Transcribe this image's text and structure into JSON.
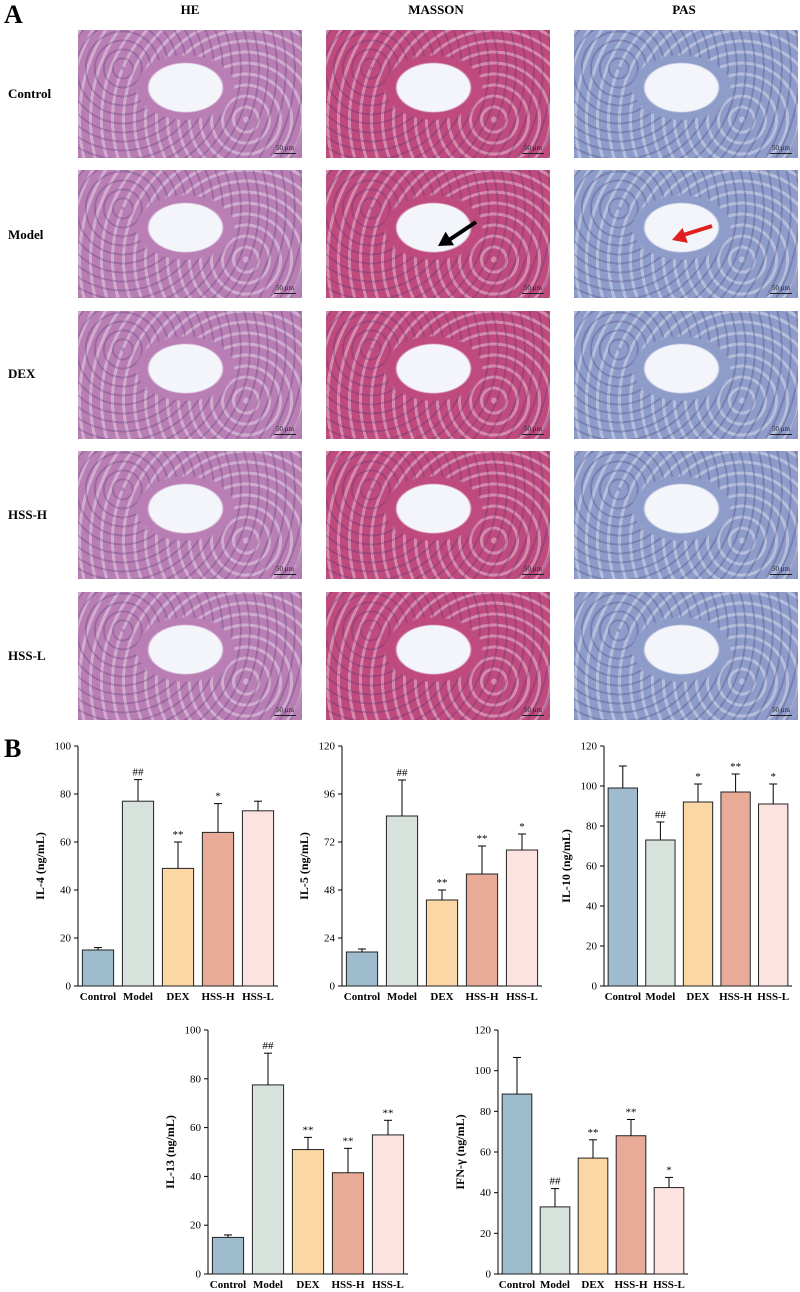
{
  "panels": {
    "a": "A",
    "b": "B"
  },
  "histology": {
    "columns": [
      "HE",
      "MASSON",
      "PAS"
    ],
    "rows": [
      "Control",
      "Model",
      "DEX",
      "HSS-H",
      "HSS-L"
    ],
    "scale_bar": "50 μm",
    "colors": {
      "HE": "#b97fb4",
      "MASSON": "#bf4a7e",
      "PAS": "#8d9cc8"
    },
    "arrows": [
      {
        "row": "Model",
        "column": "MASSON",
        "color": "#000000"
      },
      {
        "row": "Model",
        "column": "PAS",
        "color": "#e02020"
      }
    ]
  },
  "chart_data": [
    {
      "type": "bar",
      "ylabel": "IL-4 (ng/mL)",
      "categories": [
        "Control",
        "Model",
        "DEX",
        "HSS-H",
        "HSS-L"
      ],
      "values": [
        15,
        77,
        49,
        64,
        73
      ],
      "errors": [
        1,
        9,
        11,
        12,
        4
      ],
      "annotations": [
        "",
        "##",
        "**",
        "*",
        ""
      ],
      "ylim": [
        0,
        100
      ],
      "yticks": [
        0,
        20,
        40,
        60,
        80,
        100
      ],
      "colors": [
        "#9fbccf",
        "#d8e2dc",
        "#fbd7a6",
        "#e8ab98",
        "#fde3df"
      ]
    },
    {
      "type": "bar",
      "ylabel": "IL-5 (ng/mL)",
      "categories": [
        "Control",
        "Model",
        "DEX",
        "HSS-H",
        "HSS-L"
      ],
      "values": [
        17,
        85,
        43,
        56,
        68
      ],
      "errors": [
        1.5,
        18,
        5,
        14,
        8
      ],
      "annotations": [
        "",
        "##",
        "**",
        "**",
        "*"
      ],
      "ylim": [
        0,
        120
      ],
      "yticks": [
        0,
        24,
        48,
        72,
        96,
        120
      ],
      "colors": [
        "#9fbccf",
        "#d8e2dc",
        "#fbd7a6",
        "#e8ab98",
        "#fde3df"
      ]
    },
    {
      "type": "bar",
      "ylabel": "IL-10 (ng/mL)",
      "categories": [
        "Control",
        "Model",
        "DEX",
        "HSS-H",
        "HSS-L"
      ],
      "values": [
        99,
        73,
        92,
        97,
        91
      ],
      "errors": [
        11,
        9,
        9,
        9,
        10
      ],
      "annotations": [
        "",
        "##",
        "*",
        "**",
        "*"
      ],
      "ylim": [
        0,
        120
      ],
      "yticks": [
        0,
        20,
        40,
        60,
        80,
        100,
        120
      ],
      "colors": [
        "#9fbccf",
        "#d8e2dc",
        "#fbd7a6",
        "#e8ab98",
        "#fde3df"
      ]
    },
    {
      "type": "bar",
      "ylabel": "IL-13 (ng/mL)",
      "categories": [
        "Control",
        "Model",
        "DEX",
        "HSS-H",
        "HSS-L"
      ],
      "values": [
        15,
        77.5,
        51,
        41.5,
        57
      ],
      "errors": [
        1,
        13,
        5,
        10,
        6
      ],
      "annotations": [
        "",
        "##",
        "**",
        "**",
        "**"
      ],
      "ylim": [
        0,
        100
      ],
      "yticks": [
        0,
        20,
        40,
        60,
        80,
        100
      ],
      "colors": [
        "#9fbccf",
        "#d8e2dc",
        "#fbd7a6",
        "#e8ab98",
        "#fde3df"
      ]
    },
    {
      "type": "bar",
      "ylabel": "IFN-γ (ng/mL)",
      "categories": [
        "Control",
        "Model",
        "DEX",
        "HSS-H",
        "HSS-L"
      ],
      "values": [
        88.5,
        33,
        57,
        68,
        42.5
      ],
      "errors": [
        18,
        9,
        9,
        8,
        5
      ],
      "annotations": [
        "",
        "##",
        "**",
        "**",
        "*"
      ],
      "ylim": [
        0,
        120
      ],
      "yticks": [
        0,
        20,
        40,
        60,
        80,
        100,
        120
      ],
      "colors": [
        "#9fbccf",
        "#d8e2dc",
        "#fbd7a6",
        "#e8ab98",
        "#fde3df"
      ]
    }
  ]
}
